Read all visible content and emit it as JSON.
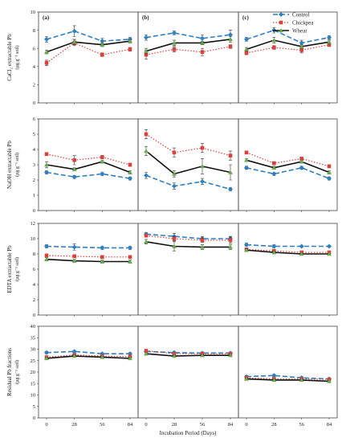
{
  "legend": {
    "position": "top-right",
    "entries": [
      {
        "key": "control",
        "label": "Control"
      },
      {
        "key": "chickpea",
        "label": "Chickpea"
      },
      {
        "key": "wheat",
        "label": "Wheat"
      }
    ]
  },
  "colors": {
    "control": "#2f7fc1",
    "chickpea": "#d9413a",
    "wheat": "#6aa84f",
    "line_wheat": "#111111"
  },
  "xlabel": "Incubation Period (Days)",
  "columns": [
    "(a)",
    "(b)",
    "(c)"
  ],
  "chart_data": [
    {
      "type": "line",
      "ylabel": "CaCl₂ extractable Pb",
      "ylabel_unit": "(µg g⁻¹ soil)",
      "ylim": [
        0,
        10
      ],
      "yticks": [
        "0",
        "2",
        "4",
        "6",
        "8",
        "10"
      ],
      "x": [
        0,
        28,
        56,
        84
      ],
      "xticks": [
        "0",
        "28",
        "56",
        "84"
      ],
      "panels": [
        {
          "label": "(a)",
          "series": [
            {
              "key": "control",
              "values": [
                7.0,
                7.9,
                6.8,
                7.0
              ],
              "err": [
                0.3,
                0.6,
                0.3,
                0.2
              ]
            },
            {
              "key": "chickpea",
              "values": [
                4.4,
                6.6,
                5.3,
                5.9
              ],
              "err": [
                0.3,
                0.3,
                0.2,
                0.2
              ]
            },
            {
              "key": "wheat",
              "values": [
                5.6,
                6.7,
                6.4,
                6.8
              ],
              "err": [
                0.2,
                0.3,
                0.2,
                0.2
              ]
            }
          ]
        },
        {
          "label": "(b)",
          "series": [
            {
              "key": "control",
              "values": [
                7.2,
                7.7,
                7.1,
                7.5
              ],
              "err": [
                0.3,
                0.2,
                0.4,
                0.5
              ]
            },
            {
              "key": "chickpea",
              "values": [
                5.3,
                5.9,
                5.6,
                6.2
              ],
              "err": [
                0.5,
                0.3,
                0.4,
                0.2
              ]
            },
            {
              "key": "wheat",
              "values": [
                5.7,
                6.6,
                6.6,
                7.0
              ],
              "err": [
                0.3,
                0.3,
                0.2,
                0.3
              ]
            }
          ]
        },
        {
          "label": "(c)",
          "series": [
            {
              "key": "control",
              "values": [
                7.0,
                8.0,
                6.6,
                7.2
              ],
              "err": [
                0.2,
                0.3,
                0.3,
                0.2
              ]
            },
            {
              "key": "chickpea",
              "values": [
                5.5,
                6.1,
                5.8,
                6.4
              ],
              "err": [
                0.2,
                0.2,
                0.3,
                0.2
              ]
            },
            {
              "key": "wheat",
              "values": [
                5.9,
                6.9,
                6.2,
                6.7
              ],
              "err": [
                0.2,
                0.3,
                0.2,
                0.2
              ]
            }
          ]
        }
      ]
    },
    {
      "type": "line",
      "ylabel": "NaOH extractable Pb",
      "ylabel_unit": "(µg g⁻¹ soil)",
      "ylim": [
        0,
        6
      ],
      "yticks": [
        "0",
        "1",
        "2",
        "3",
        "4",
        "5",
        "6"
      ],
      "x": [
        0,
        28,
        56,
        84
      ],
      "xticks": [
        "0",
        "28",
        "56",
        "84"
      ],
      "panels": [
        {
          "label": "(a)",
          "series": [
            {
              "key": "control",
              "values": [
                2.5,
                2.2,
                2.4,
                2.1
              ],
              "err": [
                0.1,
                0.1,
                0.1,
                0.1
              ]
            },
            {
              "key": "chickpea",
              "values": [
                3.7,
                3.3,
                3.5,
                3.0
              ],
              "err": [
                0.1,
                0.3,
                0.1,
                0.1
              ]
            },
            {
              "key": "wheat",
              "values": [
                3.0,
                2.7,
                3.2,
                2.5
              ],
              "err": [
                0.2,
                0.1,
                0.1,
                0.1
              ]
            }
          ]
        },
        {
          "label": "(b)",
          "series": [
            {
              "key": "control",
              "values": [
                2.3,
                1.6,
                1.9,
                1.4
              ],
              "err": [
                0.2,
                0.2,
                0.2,
                0.1
              ]
            },
            {
              "key": "chickpea",
              "values": [
                5.0,
                3.8,
                4.1,
                3.6
              ],
              "err": [
                0.3,
                0.3,
                0.3,
                0.3
              ]
            },
            {
              "key": "wheat",
              "values": [
                3.9,
                2.4,
                2.9,
                2.5
              ],
              "err": [
                0.3,
                0.2,
                0.5,
                0.5
              ]
            }
          ]
        },
        {
          "label": "(c)",
          "series": [
            {
              "key": "control",
              "values": [
                2.8,
                2.4,
                2.8,
                2.1
              ],
              "err": [
                0.1,
                0.1,
                0.1,
                0.1
              ]
            },
            {
              "key": "chickpea",
              "values": [
                3.8,
                3.1,
                3.4,
                2.9
              ],
              "err": [
                0.1,
                0.1,
                0.1,
                0.1
              ]
            },
            {
              "key": "wheat",
              "values": [
                3.3,
                2.8,
                3.2,
                2.5
              ],
              "err": [
                0.1,
                0.1,
                0.1,
                0.1
              ]
            }
          ]
        }
      ]
    },
    {
      "type": "line",
      "ylabel": "EDTA extractable Pb",
      "ylabel_unit": "(µg g⁻¹ soil)",
      "ylim": [
        0,
        12
      ],
      "yticks": [
        "0",
        "2",
        "4",
        "6",
        "8",
        "10",
        "12"
      ],
      "x": [
        0,
        28,
        56,
        84
      ],
      "xticks": [
        "0",
        "28",
        "56",
        "84"
      ],
      "panels": [
        {
          "label": "(a)",
          "series": [
            {
              "key": "control",
              "values": [
                9.0,
                8.9,
                8.8,
                8.8
              ],
              "err": [
                0.2,
                0.4,
                0.2,
                0.2
              ]
            },
            {
              "key": "chickpea",
              "values": [
                7.8,
                7.7,
                7.6,
                7.6
              ],
              "err": [
                0.2,
                0.2,
                0.2,
                0.2
              ]
            },
            {
              "key": "wheat",
              "values": [
                7.3,
                7.1,
                7.0,
                7.0
              ],
              "err": [
                0.2,
                0.2,
                0.2,
                0.2
              ]
            }
          ]
        },
        {
          "label": "(b)",
          "series": [
            {
              "key": "control",
              "values": [
                10.6,
                10.3,
                10.0,
                10.0
              ],
              "err": [
                0.2,
                0.4,
                0.3,
                0.3
              ]
            },
            {
              "key": "chickpea",
              "values": [
                10.4,
                10.0,
                9.8,
                9.8
              ],
              "err": [
                0.2,
                0.3,
                0.3,
                0.4
              ]
            },
            {
              "key": "wheat",
              "values": [
                9.6,
                9.0,
                8.9,
                8.9
              ],
              "err": [
                0.3,
                0.6,
                0.3,
                0.3
              ]
            }
          ]
        },
        {
          "label": "(c)",
          "series": [
            {
              "key": "control",
              "values": [
                9.2,
                9.0,
                9.0,
                9.0
              ],
              "err": [
                0.2,
                0.2,
                0.1,
                0.1
              ]
            },
            {
              "key": "chickpea",
              "values": [
                8.6,
                8.4,
                8.2,
                8.2
              ],
              "err": [
                0.2,
                0.2,
                0.2,
                0.2
              ]
            },
            {
              "key": "wheat",
              "values": [
                8.5,
                8.2,
                8.0,
                8.0
              ],
              "err": [
                0.2,
                0.2,
                0.1,
                0.1
              ]
            }
          ]
        }
      ]
    },
    {
      "type": "line",
      "ylabel": "Residual Pb fractions",
      "ylabel_unit": "(µg g⁻¹ soil)",
      "ylim": [
        0,
        40
      ],
      "yticks": [
        "0",
        "5",
        "10",
        "15",
        "20",
        "25",
        "30",
        "35",
        "40"
      ],
      "x": [
        0,
        28,
        56,
        84
      ],
      "xticks": [
        "0",
        "28",
        "56",
        "84"
      ],
      "panels": [
        {
          "label": "(a)",
          "series": [
            {
              "key": "control",
              "values": [
                28.5,
                29.0,
                28.0,
                28.0
              ],
              "err": [
                0.5,
                0.5,
                0.5,
                0.5
              ]
            },
            {
              "key": "chickpea",
              "values": [
                26.5,
                27.5,
                27.0,
                26.8
              ],
              "err": [
                0.5,
                0.5,
                0.5,
                0.5
              ]
            },
            {
              "key": "wheat",
              "values": [
                26.0,
                27.0,
                26.5,
                26.0
              ],
              "err": [
                0.5,
                0.5,
                0.5,
                0.5
              ]
            }
          ]
        },
        {
          "label": "(b)",
          "series": [
            {
              "key": "control",
              "values": [
                29.0,
                28.5,
                28.3,
                28.3
              ],
              "err": [
                0.5,
                0.5,
                0.5,
                0.5
              ]
            },
            {
              "key": "chickpea",
              "values": [
                29.3,
                28.0,
                28.0,
                28.0
              ],
              "err": [
                0.5,
                0.5,
                0.5,
                0.5
              ]
            },
            {
              "key": "wheat",
              "values": [
                28.0,
                27.0,
                27.3,
                27.3
              ],
              "err": [
                0.5,
                0.5,
                0.5,
                0.5
              ]
            }
          ]
        },
        {
          "label": "(c)",
          "series": [
            {
              "key": "control",
              "values": [
                18.0,
                18.5,
                17.5,
                17.0
              ],
              "err": [
                0.5,
                0.5,
                0.5,
                0.5
              ]
            },
            {
              "key": "chickpea",
              "values": [
                17.5,
                17.0,
                17.0,
                16.8
              ],
              "err": [
                0.5,
                0.5,
                0.5,
                0.5
              ]
            },
            {
              "key": "wheat",
              "values": [
                17.0,
                16.5,
                16.5,
                16.0
              ],
              "err": [
                0.5,
                0.5,
                0.5,
                0.5
              ]
            }
          ]
        }
      ]
    }
  ]
}
